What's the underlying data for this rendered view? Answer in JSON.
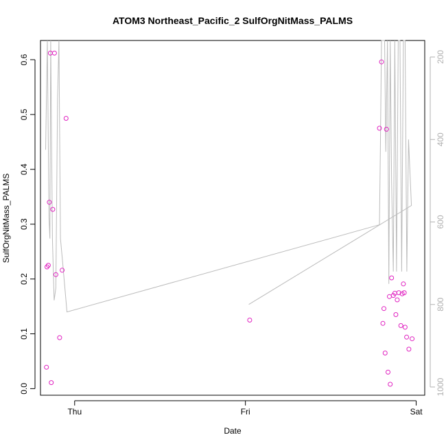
{
  "chart_data": {
    "type": "scatter",
    "title": "ATOM3 Northeast_Pacific_2 SulfOrgNitMass_PALMS",
    "xlabel": "Date",
    "ylabel": "SulfOrgNitMass_PALMS",
    "x_unit": "days",
    "xlim": [
      -0.2,
      2.05
    ],
    "ylim": [
      -0.012,
      0.635
    ],
    "x_ticks": [
      {
        "value": 0,
        "label": "Thu"
      },
      {
        "value": 1,
        "label": "Fri"
      },
      {
        "value": 2,
        "label": "Sat"
      }
    ],
    "y_ticks": [
      {
        "value": 0.0,
        "label": "0.0"
      },
      {
        "value": 0.1,
        "label": "0.1"
      },
      {
        "value": 0.2,
        "label": "0.2"
      },
      {
        "value": 0.3,
        "label": "0.3"
      },
      {
        "value": 0.4,
        "label": "0.4"
      },
      {
        "value": 0.5,
        "label": "0.5"
      },
      {
        "value": 0.6,
        "label": "0.6"
      }
    ],
    "secondary_axis": {
      "position": "right",
      "reversed": true,
      "range": [
        160,
        1020
      ],
      "ticks": [
        {
          "value": 200,
          "label": "200"
        },
        {
          "value": 400,
          "label": "400"
        },
        {
          "value": 600,
          "label": "600"
        },
        {
          "value": 800,
          "label": "800"
        },
        {
          "value": 1000,
          "label": "1000"
        }
      ],
      "color": "#b0b0b0"
    },
    "series": [
      {
        "kind": "points",
        "color": "#e020c0",
        "marker": "open-circle",
        "points": [
          [
            -0.165,
            0.039
          ],
          [
            -0.162,
            0.222
          ],
          [
            -0.154,
            0.225
          ],
          [
            -0.148,
            0.34
          ],
          [
            -0.142,
            0.612
          ],
          [
            -0.137,
            0.011
          ],
          [
            -0.128,
            0.327
          ],
          [
            -0.118,
            0.612
          ],
          [
            -0.11,
            0.208
          ],
          [
            -0.088,
            0.093
          ],
          [
            -0.073,
            0.216
          ],
          [
            -0.05,
            0.493
          ],
          [
            1.025,
            0.125
          ],
          [
            1.785,
            0.475
          ],
          [
            1.797,
            0.596
          ],
          [
            1.805,
            0.119
          ],
          [
            1.811,
            0.146
          ],
          [
            1.818,
            0.065
          ],
          [
            1.826,
            0.473
          ],
          [
            1.835,
            0.03
          ],
          [
            1.843,
            0.168
          ],
          [
            1.848,
            0.008
          ],
          [
            1.856,
            0.202
          ],
          [
            1.866,
            0.17
          ],
          [
            1.875,
            0.174
          ],
          [
            1.881,
            0.135
          ],
          [
            1.889,
            0.162
          ],
          [
            1.898,
            0.175
          ],
          [
            1.91,
            0.115
          ],
          [
            1.918,
            0.173
          ],
          [
            1.925,
            0.191
          ],
          [
            1.93,
            0.175
          ],
          [
            1.935,
            0.112
          ],
          [
            1.944,
            0.094
          ],
          [
            1.957,
            0.072
          ],
          [
            1.976,
            0.091
          ]
        ]
      },
      {
        "kind": "line",
        "color": "#bbbbbb",
        "axis": "secondary",
        "points": [
          [
            -0.17,
            425
          ],
          [
            -0.16,
            100
          ],
          [
            -0.15,
            590
          ],
          [
            -0.145,
            640
          ],
          [
            -0.14,
            100
          ],
          [
            -0.13,
            640
          ],
          [
            -0.12,
            790
          ],
          [
            -0.11,
            760
          ],
          [
            -0.1,
            300
          ],
          [
            -0.092,
            100
          ],
          [
            -0.083,
            640
          ],
          [
            -0.07,
            700
          ],
          [
            -0.045,
            818
          ],
          [
            1.783,
            607
          ],
          [
            1.785,
            607
          ],
          [
            1.79,
            430
          ],
          [
            1.797,
            100
          ],
          [
            1.805,
            100
          ],
          [
            1.815,
            100
          ],
          [
            1.822,
            430
          ],
          [
            1.832,
            100
          ],
          [
            1.84,
            750
          ],
          [
            1.848,
            100
          ],
          [
            1.856,
            500
          ],
          [
            1.866,
            720
          ],
          [
            1.875,
            100
          ],
          [
            1.885,
            720
          ],
          [
            1.895,
            100
          ],
          [
            1.905,
            100
          ],
          [
            1.915,
            720
          ],
          [
            1.925,
            100
          ],
          [
            1.935,
            100
          ],
          [
            1.945,
            720
          ],
          [
            1.955,
            400
          ],
          [
            1.972,
            560
          ],
          [
            1.02,
            800
          ]
        ]
      }
    ]
  }
}
